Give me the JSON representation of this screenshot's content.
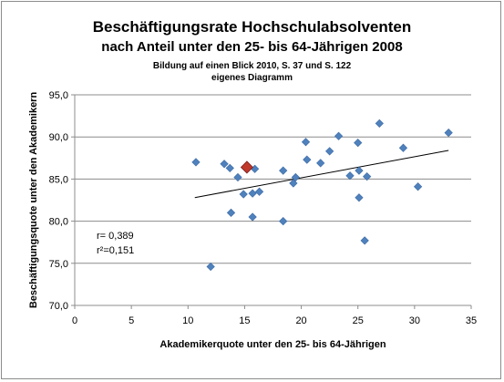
{
  "chart_data": {
    "type": "scatter",
    "title": "Beschäftigungsrate Hochschulabsolventen",
    "subtitle": "nach Anteil unter den 25- bis 64-Jährigen 2008",
    "source": "Bildung auf einen Blick 2010, S. 37 und S. 122",
    "note": "eigenes Diagramm",
    "xlabel": "Akademikerquote unter den 25- bis 64-Jährigen",
    "ylabel": "Beschäftigungsquote unter den Akademikern",
    "xlim": [
      0,
      35
    ],
    "ylim": [
      70,
      95
    ],
    "x_ticks": [
      "0",
      "5",
      "10",
      "15",
      "20",
      "25",
      "30",
      "35"
    ],
    "y_ticks": [
      "70,0",
      "75,0",
      "80,0",
      "85,0",
      "90,0",
      "95,0"
    ],
    "grid": "horizontal",
    "legend": "none",
    "point_color": "#4f81bd",
    "highlight_color": "#c0392b",
    "trendline": {
      "x": [
        10.6,
        33.0
      ],
      "y": [
        82.8,
        88.4
      ],
      "color": "#000000"
    },
    "annotations": [
      "r= 0,389",
      "r²=0,151"
    ],
    "points": [
      {
        "x": 10.7,
        "y": 87.0
      },
      {
        "x": 12.0,
        "y": 74.6
      },
      {
        "x": 13.2,
        "y": 86.8
      },
      {
        "x": 13.7,
        "y": 86.3
      },
      {
        "x": 13.8,
        "y": 81.0
      },
      {
        "x": 14.4,
        "y": 85.2
      },
      {
        "x": 14.9,
        "y": 83.2
      },
      {
        "x": 15.7,
        "y": 83.3
      },
      {
        "x": 15.7,
        "y": 80.5
      },
      {
        "x": 15.9,
        "y": 86.2
      },
      {
        "x": 16.3,
        "y": 83.5
      },
      {
        "x": 18.4,
        "y": 86.0
      },
      {
        "x": 18.4,
        "y": 80.0
      },
      {
        "x": 19.3,
        "y": 84.5
      },
      {
        "x": 19.5,
        "y": 85.2
      },
      {
        "x": 20.4,
        "y": 89.4
      },
      {
        "x": 20.5,
        "y": 87.3
      },
      {
        "x": 21.7,
        "y": 86.9
      },
      {
        "x": 22.5,
        "y": 88.3
      },
      {
        "x": 23.3,
        "y": 90.1
      },
      {
        "x": 24.3,
        "y": 85.4
      },
      {
        "x": 25.0,
        "y": 89.3
      },
      {
        "x": 25.1,
        "y": 86.0
      },
      {
        "x": 25.1,
        "y": 82.8
      },
      {
        "x": 25.6,
        "y": 77.7
      },
      {
        "x": 25.8,
        "y": 85.3
      },
      {
        "x": 26.9,
        "y": 91.6
      },
      {
        "x": 29.0,
        "y": 88.7
      },
      {
        "x": 30.3,
        "y": 84.1
      },
      {
        "x": 33.0,
        "y": 90.5
      }
    ],
    "highlight": {
      "x": 15.2,
      "y": 86.4
    }
  }
}
